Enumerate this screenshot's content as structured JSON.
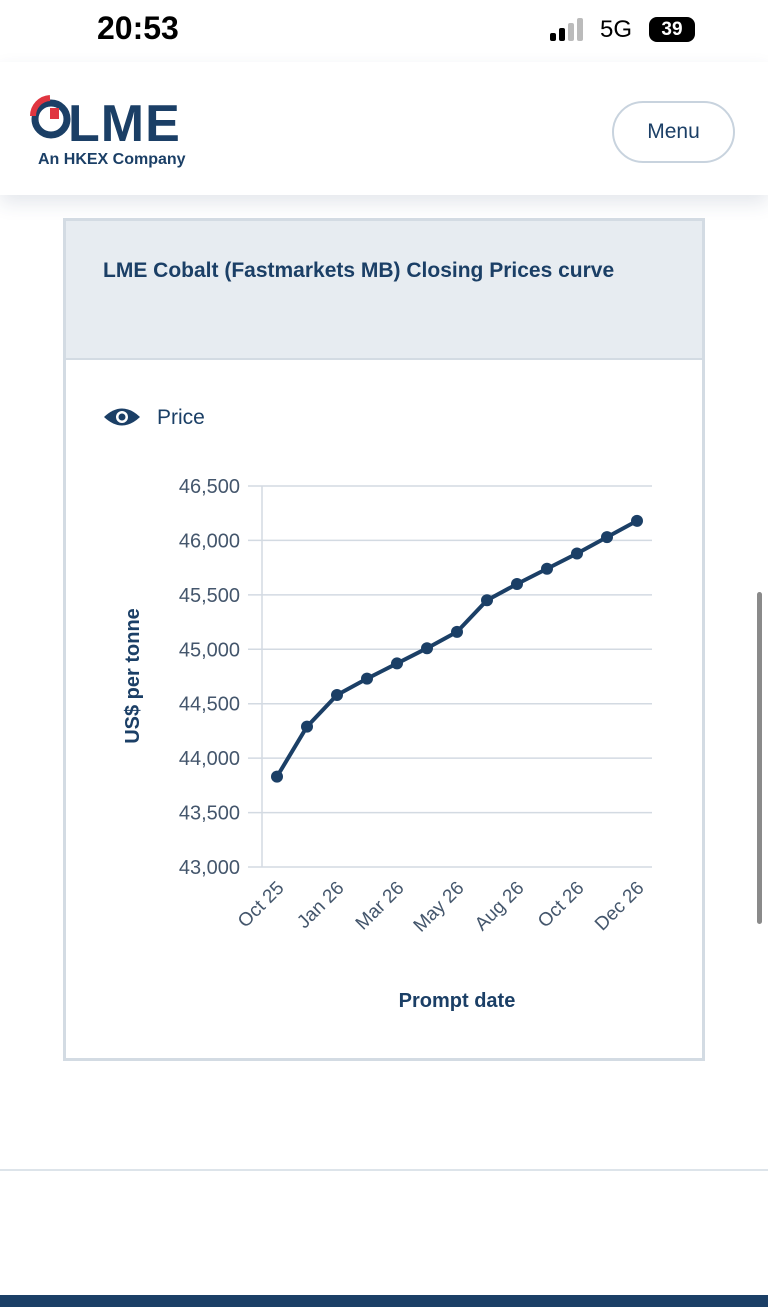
{
  "status_bar": {
    "time": "20:53",
    "network": "5G",
    "battery": "39"
  },
  "header": {
    "logo": "LME",
    "tagline": "An HKEX Company",
    "menu": "Menu"
  },
  "card": {
    "title": "LME Cobalt (Fastmarkets MB) Closing Prices curve"
  },
  "chart_data": {
    "type": "line",
    "x_label": "Prompt date",
    "y_label": "US$ per tonne",
    "categories": [
      "Oct 25",
      null,
      "Jan 26",
      null,
      "Mar 26",
      null,
      "May 26",
      null,
      "Aug 26",
      null,
      "Oct 26",
      null,
      "Dec 26"
    ],
    "series": [
      {
        "name": "Price",
        "color": "#1b3f66",
        "values": [
          43830,
          44290,
          44580,
          44730,
          44870,
          45010,
          45160,
          45450,
          45600,
          45740,
          45880,
          46030,
          46180
        ]
      }
    ],
    "ylim": [
      43000,
      46500
    ],
    "yticks": [
      {
        "value": 43000,
        "label": "43,000"
      },
      {
        "value": 43500,
        "label": "43,500"
      },
      {
        "value": 44000,
        "label": "44,000"
      },
      {
        "value": 44500,
        "label": "44,500"
      },
      {
        "value": 45000,
        "label": "45,000"
      },
      {
        "value": 45500,
        "label": "45,500"
      },
      {
        "value": 46000,
        "label": "46,000"
      },
      {
        "value": 46500,
        "label": "46,500"
      }
    ],
    "grid": true
  }
}
